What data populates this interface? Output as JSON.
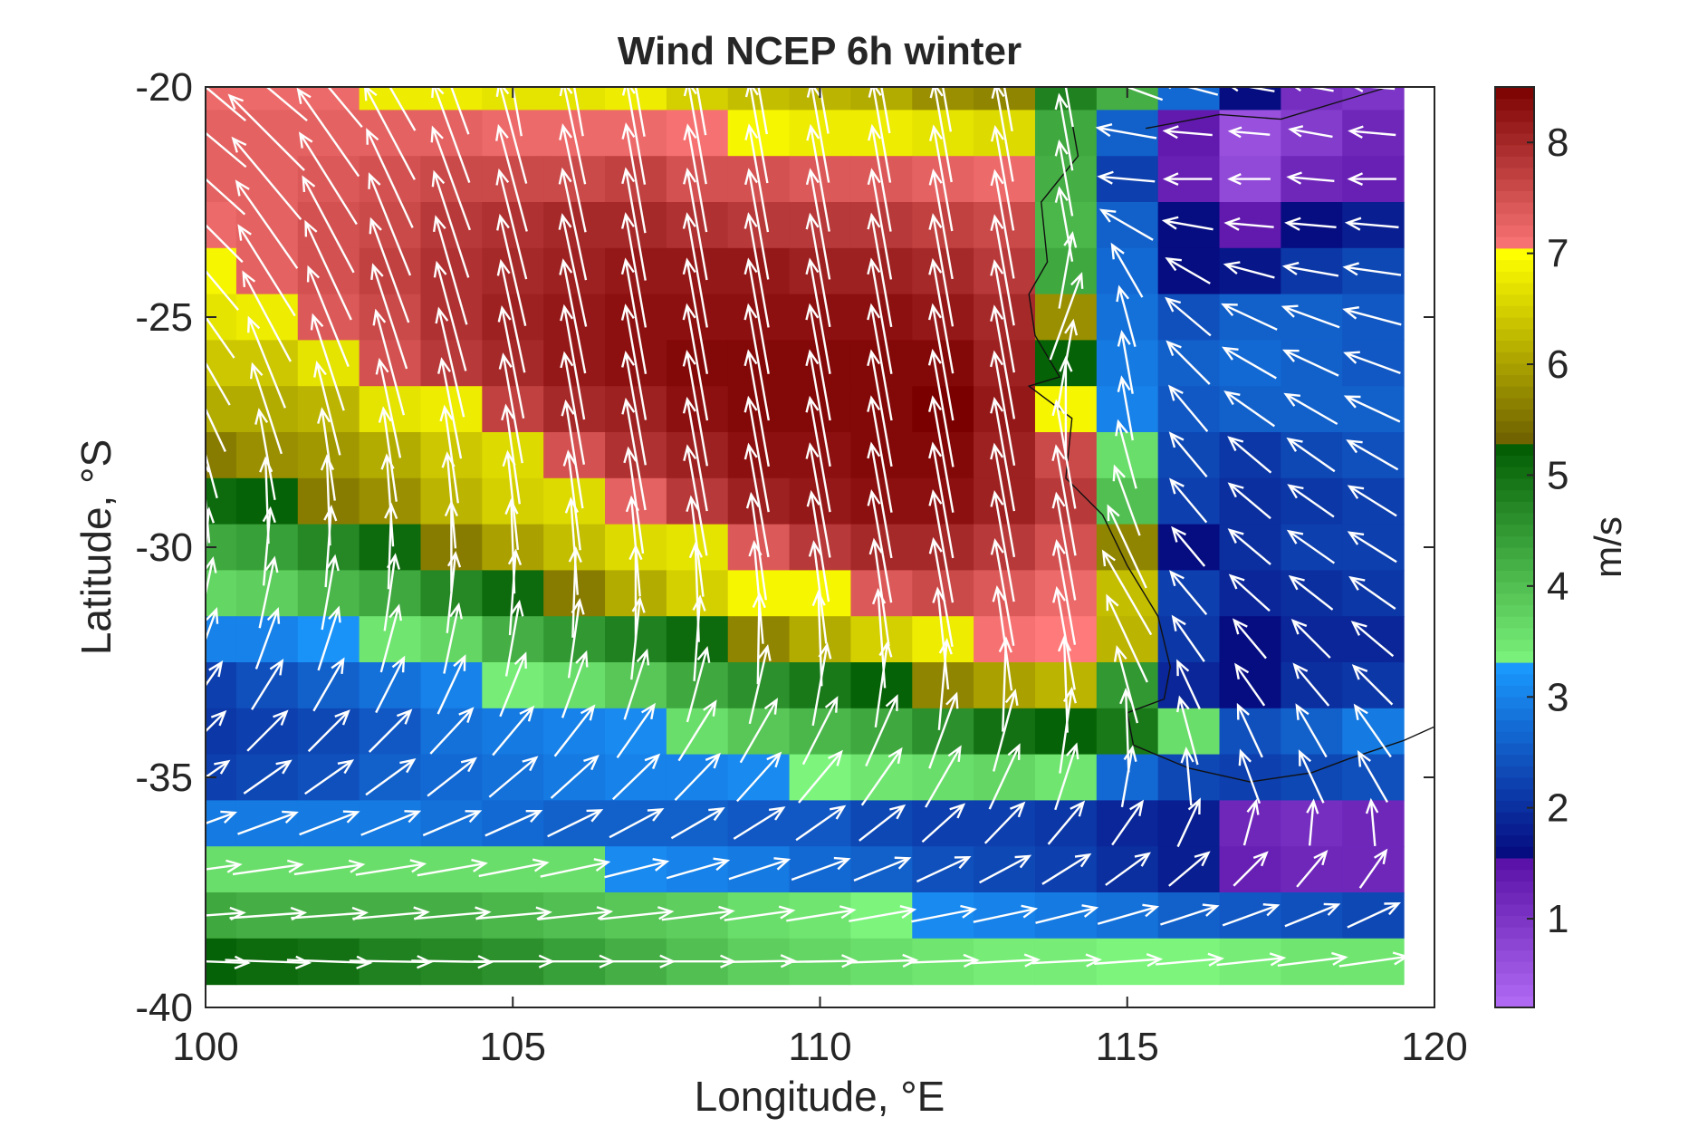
{
  "chart_data": {
    "type": "heatmap",
    "title": "Wind NCEP 6h winter",
    "xlabel": "Longitude, °E",
    "ylabel": "Latitude, °S",
    "xlim": [
      100,
      120
    ],
    "ylim": [
      -40,
      -20
    ],
    "xticks": [
      100,
      105,
      110,
      115,
      120
    ],
    "yticks": [
      -40,
      -35,
      -30,
      -25,
      -20
    ],
    "xtick_labels": [
      "100",
      "105",
      "110",
      "115",
      "120"
    ],
    "ytick_labels": [
      "-40",
      "-35",
      "-30",
      "-25",
      "-20"
    ],
    "colorbar": {
      "label": "m/s",
      "range": [
        0.2,
        8.5
      ],
      "ticks": [
        1,
        2,
        3,
        4,
        5,
        6,
        7,
        8
      ],
      "tick_labels": [
        "1",
        "2",
        "3",
        "4",
        "5",
        "6",
        "7",
        "8"
      ],
      "segments": [
        {
          "from": 0.2,
          "to": 1.5,
          "colors": [
            "#b36cf5",
            "#5a12a8"
          ]
        },
        {
          "from": 1.5,
          "to": 3.3,
          "colors": [
            "#05057a",
            "#1a9bff"
          ]
        },
        {
          "from": 3.3,
          "to": 5.3,
          "colors": [
            "#7df57d",
            "#005a00"
          ]
        },
        {
          "from": 5.3,
          "to": 7.0,
          "colors": [
            "#6e6000",
            "#ffff00"
          ]
        },
        {
          "from": 7.0,
          "to": 8.5,
          "colors": [
            "#ff7a7a",
            "#7a0000"
          ]
        }
      ]
    },
    "grid": false,
    "cell_size_deg": 1,
    "cells_lon_range": [
      100,
      119
    ],
    "cells_lat_range": [
      -39,
      -20
    ],
    "speed_rows_north_to_south": [
      [
        7.2,
        7.2,
        7.2,
        6.8,
        6.8,
        6.7,
        6.7,
        6.8,
        6.5,
        6.3,
        6.2,
        6.1,
        5.8,
        5.7,
        4.8,
        4.2,
        2.7,
        1.6,
        1.1,
        1.0
      ],
      [
        7.3,
        7.3,
        7.3,
        7.3,
        7.3,
        7.2,
        7.2,
        7.2,
        7.1,
        6.9,
        6.8,
        6.8,
        6.7,
        6.6,
        4.3,
        2.6,
        1.4,
        0.6,
        0.9,
        1.2
      ],
      [
        7.3,
        7.3,
        7.4,
        7.5,
        7.6,
        7.6,
        7.6,
        7.7,
        7.5,
        7.5,
        7.4,
        7.4,
        7.3,
        7.2,
        4.2,
        2.2,
        1.3,
        0.7,
        1.2,
        1.3
      ],
      [
        7.2,
        7.3,
        7.5,
        7.6,
        7.8,
        7.9,
        8.0,
        8.0,
        7.9,
        7.8,
        7.8,
        7.8,
        7.7,
        7.6,
        4.1,
        2.6,
        1.6,
        1.4,
        1.6,
        1.8
      ],
      [
        6.9,
        7.3,
        7.5,
        7.7,
        7.9,
        8.0,
        8.1,
        8.2,
        8.2,
        8.2,
        8.1,
        8.1,
        8.0,
        7.8,
        4.3,
        2.7,
        1.6,
        1.7,
        2.1,
        2.3
      ],
      [
        6.7,
        6.8,
        7.4,
        7.6,
        7.9,
        8.1,
        8.2,
        8.3,
        8.3,
        8.3,
        8.3,
        8.3,
        8.2,
        8.0,
        5.8,
        2.8,
        2.4,
        2.6,
        2.6,
        2.5
      ],
      [
        6.4,
        6.4,
        6.7,
        7.5,
        7.8,
        8.0,
        8.2,
        8.3,
        8.4,
        8.4,
        8.4,
        8.4,
        8.4,
        8.1,
        5.2,
        2.9,
        2.6,
        2.7,
        2.6,
        2.5
      ],
      [
        6.1,
        6.1,
        6.2,
        6.7,
        6.8,
        7.7,
        8.0,
        8.1,
        8.3,
        8.4,
        8.4,
        8.4,
        8.5,
        8.2,
        6.9,
        3.0,
        2.5,
        2.6,
        2.6,
        2.6
      ],
      [
        5.6,
        5.8,
        5.9,
        6.1,
        6.4,
        6.6,
        7.5,
        7.9,
        8.1,
        8.3,
        8.3,
        8.4,
        8.4,
        8.1,
        7.6,
        3.6,
        2.3,
        2.1,
        2.3,
        2.4
      ],
      [
        5.1,
        5.2,
        5.6,
        5.8,
        6.2,
        6.5,
        6.6,
        7.3,
        7.8,
        8.1,
        8.2,
        8.3,
        8.3,
        8.1,
        7.8,
        4.0,
        2.2,
        2.0,
        2.1,
        2.2
      ],
      [
        4.3,
        4.4,
        4.7,
        5.1,
        5.6,
        6.0,
        6.3,
        6.6,
        6.7,
        7.4,
        7.8,
        8.0,
        8.0,
        7.8,
        7.5,
        5.7,
        1.6,
        2.0,
        2.2,
        2.2
      ],
      [
        3.7,
        3.8,
        4.1,
        4.3,
        4.7,
        5.1,
        5.6,
        6.1,
        6.5,
        6.9,
        6.9,
        7.4,
        7.6,
        7.4,
        7.2,
        6.3,
        2.2,
        1.9,
        2.0,
        2.1
      ],
      [
        3.0,
        3.0,
        3.2,
        3.5,
        3.7,
        4.2,
        4.5,
        4.8,
        5.1,
        5.7,
        6.1,
        6.5,
        6.8,
        7.1,
        7.0,
        6.2,
        2.1,
        1.6,
        1.9,
        1.9
      ],
      [
        2.2,
        2.4,
        2.6,
        2.8,
        3.0,
        3.4,
        3.6,
        3.9,
        4.3,
        4.6,
        4.9,
        5.2,
        5.7,
        6.0,
        6.2,
        4.5,
        1.9,
        1.6,
        2.0,
        2.1
      ],
      [
        2.1,
        2.2,
        2.3,
        2.5,
        2.8,
        2.9,
        3.0,
        3.1,
        3.6,
        3.9,
        4.1,
        4.3,
        4.6,
        5.0,
        5.2,
        4.9,
        3.6,
        2.4,
        2.6,
        2.9
      ],
      [
        2.2,
        2.3,
        2.4,
        2.6,
        2.7,
        2.8,
        2.9,
        3.0,
        3.0,
        3.1,
        3.3,
        3.5,
        3.6,
        3.7,
        3.5,
        2.7,
        2.3,
        2.2,
        2.3,
        2.4
      ],
      [
        2.9,
        2.9,
        2.9,
        2.9,
        2.8,
        2.7,
        2.6,
        2.6,
        2.6,
        2.5,
        2.5,
        2.3,
        2.2,
        2.2,
        2.1,
        1.9,
        1.8,
        1.2,
        1.1,
        1.2
      ],
      [
        3.6,
        3.6,
        3.6,
        3.6,
        3.6,
        3.6,
        3.6,
        3.1,
        3.0,
        2.9,
        2.7,
        2.6,
        2.4,
        2.3,
        2.2,
        2.0,
        1.8,
        1.3,
        1.2,
        1.2
      ],
      [
        4.3,
        4.2,
        4.2,
        4.2,
        4.2,
        4.1,
        4.0,
        3.9,
        3.8,
        3.6,
        3.5,
        3.3,
        3.1,
        3.0,
        2.9,
        2.8,
        2.6,
        2.5,
        2.4,
        2.3
      ],
      [
        5.2,
        5.1,
        5.0,
        4.8,
        4.7,
        4.6,
        4.4,
        4.2,
        4.0,
        3.8,
        3.7,
        3.6,
        3.5,
        3.4,
        3.4,
        3.3,
        3.3,
        3.4,
        3.5,
        3.5
      ]
    ],
    "arrow_direction_rows_north_to_south_deg_from_east": [
      [
        140,
        140,
        130,
        120,
        110,
        100,
        100,
        100,
        100,
        100,
        100,
        100,
        100,
        100,
        100,
        160,
        165,
        170,
        170,
        175
      ],
      [
        140,
        135,
        125,
        118,
        110,
        105,
        102,
        100,
        100,
        100,
        100,
        100,
        100,
        100,
        100,
        170,
        175,
        175,
        170,
        175
      ],
      [
        138,
        130,
        122,
        115,
        110,
        105,
        102,
        100,
        100,
        100,
        100,
        100,
        100,
        100,
        100,
        175,
        180,
        180,
        175,
        180
      ],
      [
        135,
        125,
        118,
        112,
        108,
        104,
        102,
        100,
        100,
        100,
        100,
        100,
        100,
        100,
        100,
        150,
        170,
        175,
        175,
        175
      ],
      [
        130,
        122,
        115,
        110,
        106,
        103,
        102,
        100,
        100,
        100,
        100,
        100,
        100,
        100,
        80,
        120,
        150,
        165,
        170,
        172
      ],
      [
        125,
        118,
        112,
        108,
        105,
        102,
        101,
        100,
        100,
        100,
        100,
        100,
        100,
        100,
        70,
        105,
        140,
        155,
        160,
        165
      ],
      [
        120,
        112,
        108,
        105,
        103,
        101,
        100,
        100,
        100,
        100,
        100,
        100,
        100,
        100,
        80,
        100,
        135,
        150,
        155,
        160
      ],
      [
        115,
        108,
        104,
        102,
        101,
        100,
        100,
        100,
        100,
        100,
        100,
        100,
        100,
        100,
        90,
        100,
        130,
        145,
        150,
        155
      ],
      [
        105,
        100,
        98,
        98,
        98,
        98,
        99,
        100,
        100,
        100,
        100,
        100,
        100,
        100,
        100,
        105,
        130,
        140,
        145,
        150
      ],
      [
        95,
        92,
        92,
        94,
        95,
        96,
        97,
        98,
        100,
        100,
        100,
        100,
        100,
        100,
        100,
        110,
        130,
        140,
        145,
        148
      ],
      [
        85,
        85,
        86,
        88,
        90,
        92,
        94,
        95,
        97,
        98,
        99,
        100,
        100,
        100,
        100,
        115,
        130,
        140,
        145,
        148
      ],
      [
        78,
        78,
        80,
        82,
        84,
        86,
        88,
        90,
        92,
        95,
        97,
        98,
        100,
        100,
        100,
        120,
        130,
        138,
        142,
        145
      ],
      [
        70,
        70,
        72,
        75,
        78,
        80,
        82,
        84,
        86,
        89,
        92,
        94,
        96,
        98,
        100,
        115,
        125,
        130,
        135,
        140
      ],
      [
        55,
        58,
        60,
        63,
        65,
        68,
        70,
        72,
        75,
        77,
        80,
        82,
        85,
        88,
        92,
        105,
        115,
        125,
        130,
        135
      ],
      [
        45,
        45,
        45,
        45,
        47,
        50,
        52,
        55,
        58,
        60,
        63,
        66,
        70,
        75,
        82,
        92,
        105,
        115,
        120,
        125
      ],
      [
        35,
        35,
        35,
        36,
        38,
        40,
        42,
        44,
        46,
        48,
        50,
        55,
        60,
        65,
        72,
        80,
        95,
        110,
        115,
        120
      ],
      [
        20,
        20,
        21,
        22,
        23,
        24,
        26,
        28,
        30,
        32,
        35,
        38,
        42,
        46,
        50,
        55,
        65,
        75,
        85,
        95
      ],
      [
        8,
        8,
        8,
        9,
        10,
        11,
        12,
        14,
        16,
        18,
        20,
        22,
        25,
        28,
        32,
        36,
        40,
        45,
        50,
        55
      ],
      [
        4,
        4,
        4,
        5,
        5,
        5,
        6,
        6,
        7,
        8,
        9,
        10,
        11,
        12,
        14,
        16,
        18,
        20,
        22,
        25
      ],
      [
        -2,
        -2,
        -2,
        -1,
        -1,
        0,
        0,
        0,
        0,
        1,
        1,
        2,
        2,
        3,
        3,
        4,
        5,
        6,
        7,
        8
      ]
    ]
  }
}
